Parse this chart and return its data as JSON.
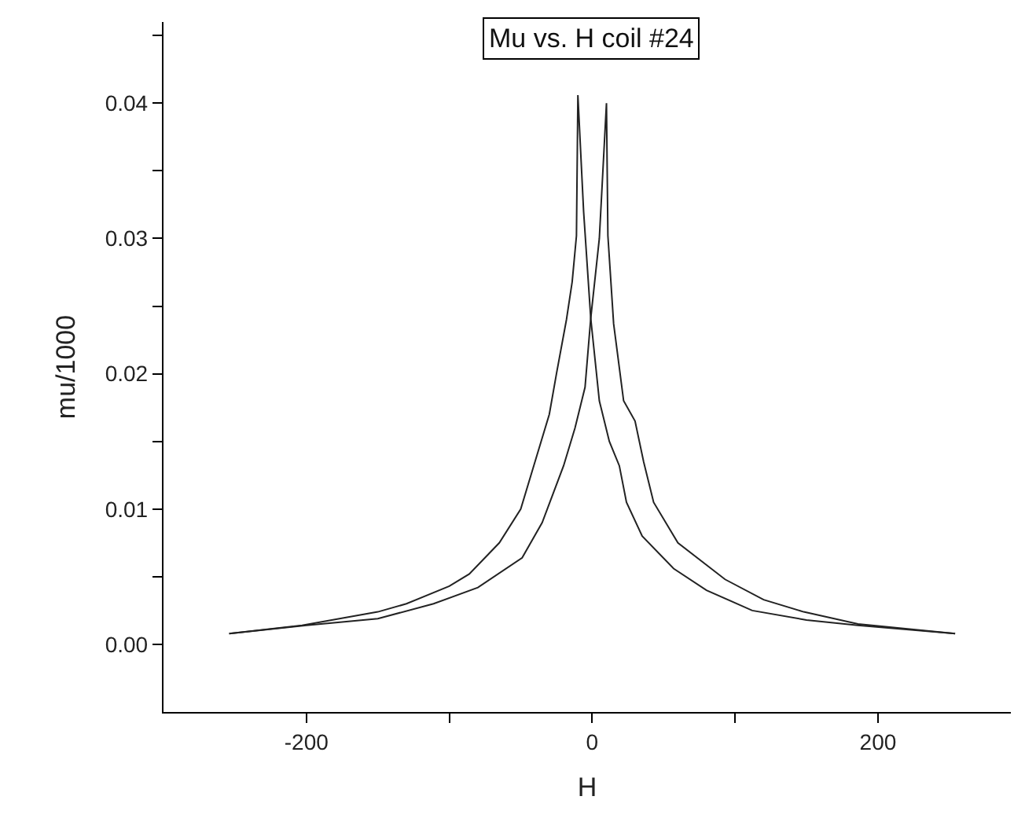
{
  "chart_data": {
    "type": "line",
    "title": "Mu vs. H coil #24",
    "xlabel": "H",
    "ylabel": "mu/1000",
    "series": [
      {
        "color": "#222222",
        "x": [
          -254,
          -203,
          -150,
          -130,
          -100,
          -86,
          -65,
          -50,
          -42,
          -30,
          -25,
          -18,
          -14,
          -11,
          -10,
          -6,
          -1,
          5,
          12,
          19,
          24,
          35,
          57,
          80,
          112,
          150,
          186,
          254
        ],
        "values": [
          0.0008,
          0.0014,
          0.0024,
          0.003,
          0.0043,
          0.0052,
          0.0075,
          0.01,
          0.0128,
          0.017,
          0.02,
          0.024,
          0.0268,
          0.0302,
          0.0406,
          0.032,
          0.0241,
          0.018,
          0.015,
          0.0132,
          0.0105,
          0.008,
          0.0056,
          0.004,
          0.0025,
          0.0018,
          0.0014,
          0.0008
        ]
      },
      {
        "color": "#222222",
        "x": [
          -254,
          -200,
          -150,
          -111,
          -80,
          -49,
          -35,
          -20,
          -12,
          -5,
          -1,
          5,
          10,
          11,
          15,
          22,
          30,
          36,
          43,
          60,
          93,
          120,
          148,
          186,
          254
        ],
        "values": [
          0.0008,
          0.0014,
          0.0019,
          0.003,
          0.0042,
          0.0064,
          0.009,
          0.0132,
          0.016,
          0.019,
          0.0241,
          0.03,
          0.04,
          0.0302,
          0.0237,
          0.018,
          0.0165,
          0.0135,
          0.0105,
          0.0075,
          0.0048,
          0.0033,
          0.0024,
          0.0015,
          0.0008
        ]
      }
    ],
    "xlim": [
      -300,
      293
    ],
    "xticks": [
      -200,
      {
        "value": -100,
        "label": null
      },
      0,
      {
        "value": 100,
        "label": null
      },
      200
    ],
    "ylim": [
      -0.005,
      0.046
    ],
    "yticks": [
      {
        "value": 0,
        "label": "0.00"
      },
      {
        "value": 0.005,
        "label": null
      },
      {
        "value": 0.01,
        "label": "0.01"
      },
      {
        "value": 0.015,
        "label": null
      },
      {
        "value": 0.02,
        "label": "0.02"
      },
      {
        "value": 0.025,
        "label": null
      },
      {
        "value": 0.03,
        "label": "0.03"
      },
      {
        "value": 0.035,
        "label": null
      },
      {
        "value": 0.04,
        "label": "0.04"
      },
      {
        "value": 0.045,
        "label": null
      }
    ],
    "legend": false,
    "marker": "none",
    "line_style": "solid"
  }
}
